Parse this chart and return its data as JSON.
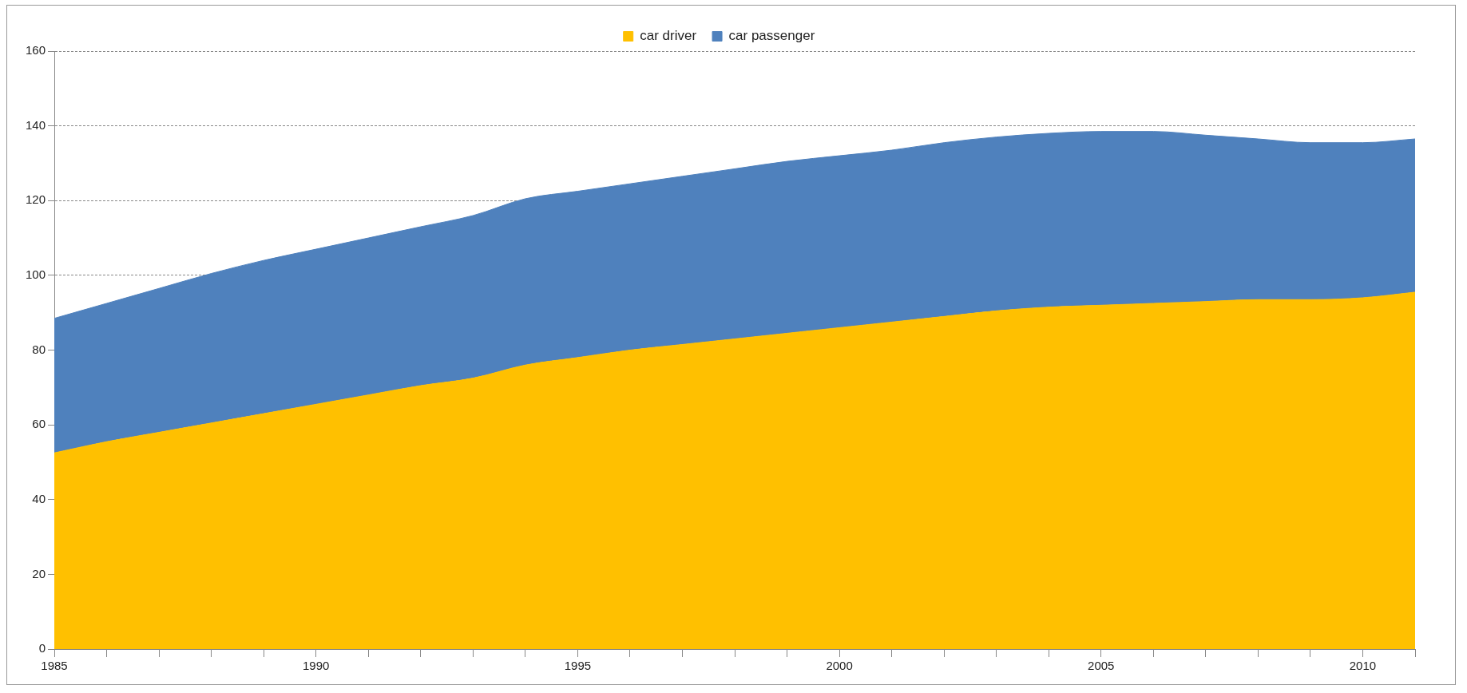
{
  "chart_data": {
    "type": "area",
    "stacked": true,
    "x": [
      1985,
      1986,
      1987,
      1988,
      1989,
      1990,
      1991,
      1992,
      1993,
      1994,
      1995,
      1996,
      1997,
      1998,
      1999,
      2000,
      2001,
      2002,
      2003,
      2004,
      2005,
      2006,
      2007,
      2008,
      2009,
      2010,
      2011
    ],
    "series": [
      {
        "name": "car driver",
        "color": "#ffc000",
        "values": [
          52.5,
          55.5,
          58,
          60.5,
          63,
          65.5,
          68,
          70.5,
          72.5,
          76,
          78,
          80,
          81.5,
          83,
          84.5,
          86,
          87.5,
          89,
          90.5,
          91.5,
          92,
          92.5,
          93,
          93.5,
          93.5,
          94,
          95.5
        ]
      },
      {
        "name": "car passenger",
        "color": "#4f81bd",
        "values": [
          36,
          37,
          38.5,
          40,
          41,
          41.5,
          42,
          42.5,
          43.5,
          44.5,
          44.5,
          44.5,
          45,
          45.5,
          46,
          46,
          46,
          46.5,
          46.5,
          46.5,
          46.5,
          46,
          44.5,
          43,
          42,
          41.5,
          41
        ]
      }
    ],
    "xlim": [
      1985,
      2011
    ],
    "xticks": [
      1985,
      {
        "value": 1986,
        "label": null
      },
      {
        "value": 1987,
        "label": null
      },
      {
        "value": 1988,
        "label": null
      },
      {
        "value": 1989,
        "label": null
      },
      1990,
      {
        "value": 1991,
        "label": null
      },
      {
        "value": 1992,
        "label": null
      },
      {
        "value": 1993,
        "label": null
      },
      {
        "value": 1994,
        "label": null
      },
      1995,
      {
        "value": 1996,
        "label": null
      },
      {
        "value": 1997,
        "label": null
      },
      {
        "value": 1998,
        "label": null
      },
      {
        "value": 1999,
        "label": null
      },
      2000,
      {
        "value": 2001,
        "label": null
      },
      {
        "value": 2002,
        "label": null
      },
      {
        "value": 2003,
        "label": null
      },
      {
        "value": 2004,
        "label": null
      },
      2005,
      {
        "value": 2006,
        "label": null
      },
      {
        "value": 2007,
        "label": null
      },
      {
        "value": 2008,
        "label": null
      },
      {
        "value": 2009,
        "label": null
      },
      2010,
      {
        "value": 2011,
        "label": null
      }
    ],
    "ylim": [
      0,
      160
    ],
    "yticks": [
      0,
      20,
      40,
      60,
      80,
      100,
      120,
      140,
      160
    ],
    "grid": "y",
    "legend": "top",
    "marker": "none"
  }
}
